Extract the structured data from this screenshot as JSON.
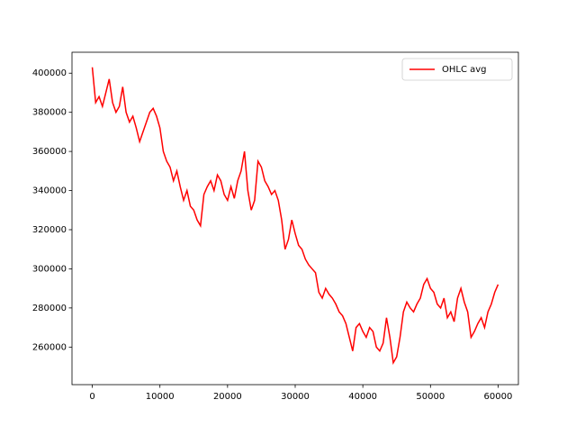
{
  "chart_data": {
    "type": "line",
    "x": [
      0,
      500,
      1000,
      1500,
      2000,
      2500,
      3000,
      3500,
      4000,
      4500,
      5000,
      5500,
      6000,
      6500,
      7000,
      7500,
      8000,
      8500,
      9000,
      9500,
      10000,
      10500,
      11000,
      11500,
      12000,
      12500,
      13000,
      13500,
      14000,
      14500,
      15000,
      15500,
      16000,
      16500,
      17000,
      17500,
      18000,
      18500,
      19000,
      19500,
      20000,
      20500,
      21000,
      21500,
      22000,
      22500,
      23000,
      23500,
      24000,
      24500,
      25000,
      25500,
      26000,
      26500,
      27000,
      27500,
      28000,
      28500,
      29000,
      29500,
      30000,
      30500,
      31000,
      31500,
      32000,
      32500,
      33000,
      33500,
      34000,
      34500,
      35000,
      35500,
      36000,
      36500,
      37000,
      37500,
      38000,
      38500,
      39000,
      39500,
      40000,
      40500,
      41000,
      41500,
      42000,
      42500,
      43000,
      43500,
      44000,
      44500,
      45000,
      45500,
      46000,
      46500,
      47000,
      47500,
      48000,
      48500,
      49000,
      49500,
      50000,
      50500,
      51000,
      51500,
      52000,
      52500,
      53000,
      53500,
      54000,
      54500,
      55000,
      55500,
      56000,
      56500,
      57000,
      57500,
      58000,
      58500,
      59000,
      59500,
      60000
    ],
    "series": [
      {
        "name": "OHLC avg",
        "color": "#ff0000",
        "values": [
          403000,
          385000,
          388000,
          383000,
          390000,
          397000,
          385000,
          380000,
          383000,
          393000,
          380000,
          375000,
          378000,
          372000,
          365000,
          370000,
          375000,
          380000,
          382000,
          378000,
          372000,
          360000,
          355000,
          352000,
          345000,
          350000,
          342000,
          335000,
          340000,
          332000,
          330000,
          325000,
          322000,
          338000,
          342000,
          345000,
          340000,
          348000,
          345000,
          338000,
          335000,
          342000,
          336000,
          345000,
          350000,
          360000,
          340000,
          330000,
          335000,
          355000,
          352000,
          345000,
          342000,
          338000,
          340000,
          335000,
          325000,
          310000,
          315000,
          325000,
          318000,
          312000,
          310000,
          305000,
          302000,
          300000,
          298000,
          288000,
          285000,
          290000,
          287000,
          285000,
          282000,
          278000,
          276000,
          272000,
          265000,
          258000,
          270000,
          272000,
          268000,
          265000,
          270000,
          268000,
          260000,
          258000,
          262000,
          275000,
          265000,
          252000,
          255000,
          265000,
          278000,
          283000,
          280000,
          278000,
          282000,
          285000,
          292000,
          295000,
          290000,
          288000,
          282000,
          280000,
          285000,
          275000,
          278000,
          273000,
          285000,
          290000,
          283000,
          278000,
          265000,
          268000,
          272000,
          275000,
          270000,
          278000,
          282000,
          288000,
          292000
        ]
      }
    ],
    "xlim": [
      -3000,
      63000
    ],
    "xticks": [
      0,
      10000,
      20000,
      30000,
      40000,
      50000,
      60000
    ],
    "ylim": [
      240800,
      410700
    ],
    "yticks": [
      260000,
      280000,
      300000,
      320000,
      340000,
      360000,
      380000,
      400000
    ],
    "grid": false,
    "legend": "upper right"
  }
}
